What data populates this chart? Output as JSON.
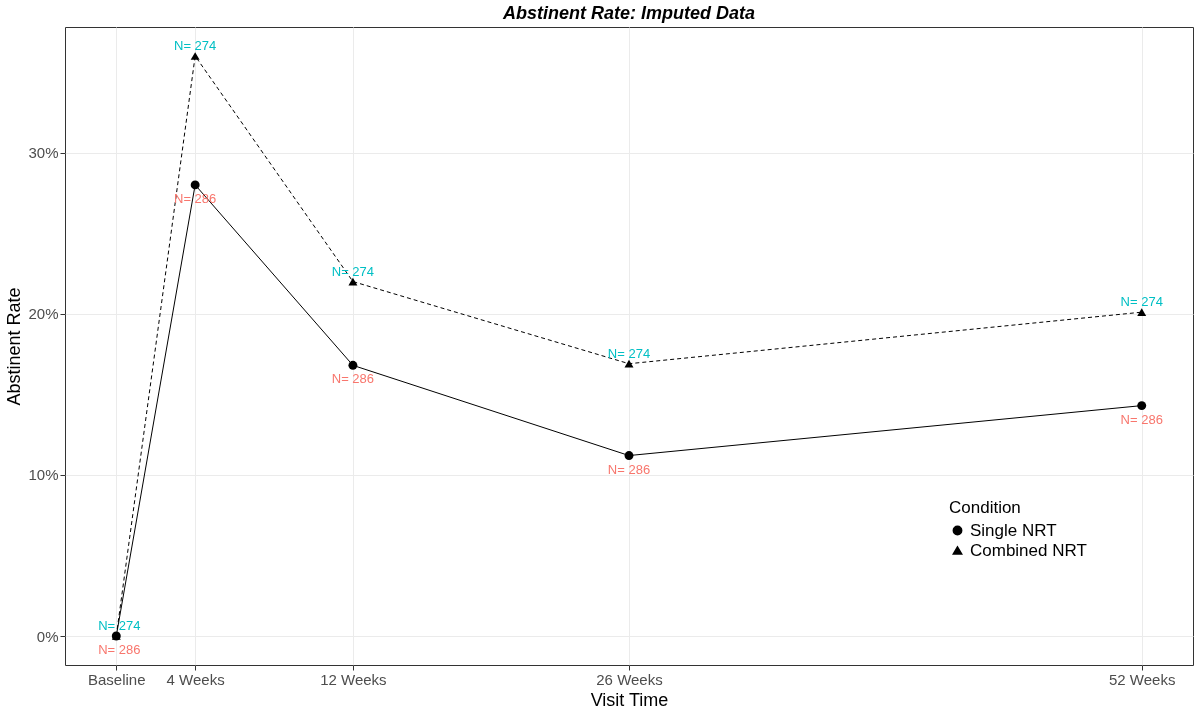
{
  "chart_data": {
    "type": "line",
    "title": "Abstinent Rate: Imputed Data",
    "xlabel": "Visit Time",
    "ylabel": "Abstinent Rate",
    "legend_title": "Condition",
    "x": [
      0,
      4,
      12,
      26,
      52
    ],
    "series": [
      {
        "name": "Single NRT",
        "color": "#000000",
        "marker": "circle",
        "line_style": "solid",
        "values": [
          0,
          28.0,
          16.8,
          11.2,
          14.3
        ]
      },
      {
        "name": "Combined NRT",
        "color": "#000000",
        "marker": "triangle",
        "line_style": "dashed",
        "values": [
          0,
          36.0,
          22.0,
          16.9,
          20.1
        ]
      }
    ],
    "annotations": [
      {
        "text": "N= 286",
        "x": 0,
        "y": 0
      },
      {
        "text": "N= 286",
        "x": 4,
        "y": 28.0
      },
      {
        "text": "N= 286",
        "x": 12,
        "y": 16.8
      },
      {
        "text": "N= 286",
        "x": 26,
        "y": 11.2
      },
      {
        "text": "N= 286",
        "x": 52,
        "y": 14.3
      },
      {
        "text": "N= 274",
        "x": 0,
        "y": 0
      },
      {
        "text": "N= 274",
        "x": 4,
        "y": 36.0
      },
      {
        "text": "N= 274",
        "x": 12,
        "y": 22.0
      },
      {
        "text": "N= 274",
        "x": 26,
        "y": 16.9
      },
      {
        "text": "N= 274",
        "x": 52,
        "y": 20.1
      }
    ],
    "xlim": [
      -2.6,
      54.6
    ],
    "xticks": [
      {
        "value": 0,
        "label": "Baseline"
      },
      {
        "value": 4,
        "label": "4 Weeks"
      },
      {
        "value": 12,
        "label": "12 Weeks"
      },
      {
        "value": 26,
        "label": "26 Weeks"
      },
      {
        "value": 52,
        "label": "52 Weeks"
      }
    ],
    "ylim": [
      -1.8,
      37.8
    ],
    "yticks": [
      {
        "value": 0,
        "label": "0%"
      },
      {
        "value": 10,
        "label": "10%"
      },
      {
        "value": 20,
        "label": "20%"
      },
      {
        "value": 30,
        "label": "30%"
      }
    ],
    "grid": true,
    "legend": "bottom right"
  }
}
